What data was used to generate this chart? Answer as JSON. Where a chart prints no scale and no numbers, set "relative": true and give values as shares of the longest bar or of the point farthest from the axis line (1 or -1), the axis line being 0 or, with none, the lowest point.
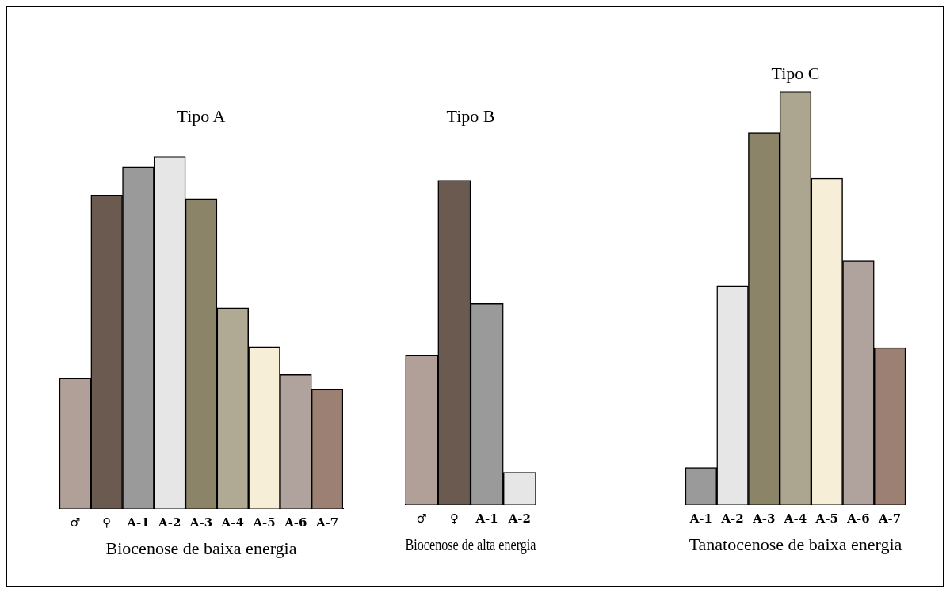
{
  "chart_data": [
    {
      "type": "bar",
      "relative": true,
      "title": "Tipo A",
      "xlabel": "Biocenose de baixa energia",
      "categories": [
        "♂",
        "♀",
        "A-1",
        "A-2",
        "A-3",
        "A-4",
        "A-5",
        "A-6",
        "A-7"
      ],
      "values": [
        0.37,
        0.89,
        0.97,
        1,
        0.88,
        0.57,
        0.46,
        0.38,
        0.34
      ],
      "colors": [
        "#b0a098",
        "#6b5a50",
        "#9a9a9a",
        "#e6e6e6",
        "#8c8468",
        "#b0aa94",
        "#f6eed6",
        "#b0a29c",
        "#9c8074"
      ]
    },
    {
      "type": "bar",
      "relative": true,
      "title": "Tipo B",
      "xlabel": "Biocenose de alta energia",
      "categories": [
        "♂",
        "♀",
        "A-1",
        "A-2"
      ],
      "values": [
        0.46,
        1,
        0.62,
        0.1
      ],
      "colors": [
        "#b0a098",
        "#6b5a50",
        "#9a9a9a",
        "#e6e6e6"
      ]
    },
    {
      "type": "bar",
      "relative": true,
      "title": "Tipo C",
      "xlabel": "Tanatocenose de baixa energia",
      "categories": [
        "A-1",
        "A-2",
        "A-3",
        "A-4",
        "A-5",
        "A-6",
        "A-7"
      ],
      "values": [
        0.09,
        0.53,
        0.9,
        1,
        0.79,
        0.59,
        0.38
      ],
      "colors": [
        "#9a9a9a",
        "#e6e6e6",
        "#8c8468",
        "#aca690",
        "#f6eed6",
        "#b0a29c",
        "#9c8074"
      ]
    }
  ]
}
